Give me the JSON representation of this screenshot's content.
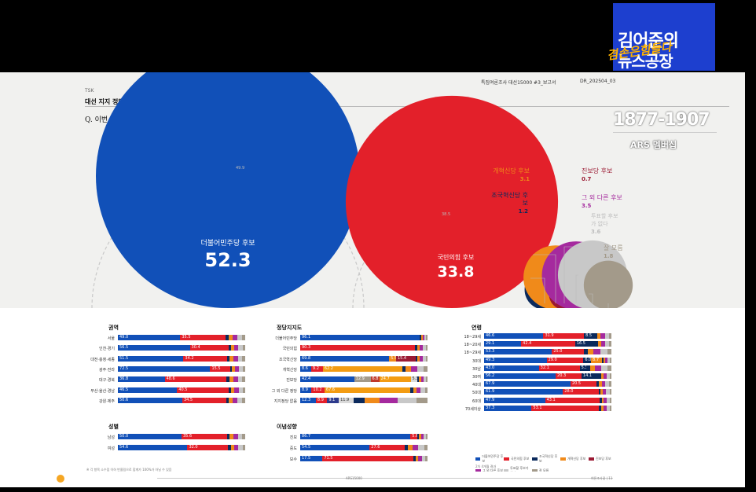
{
  "header": {
    "tag": "TSK",
    "heading": "대선 지지 정당 후보",
    "report": "특집여론조사 대선15000 #3_보고서",
    "code": "DR_202504_03",
    "question": "Q. 이번 대선에서 어느 정당 후보에 투표하시겠습니까?"
  },
  "overlay": {
    "brand_line1": "김어준의",
    "brand_slogan": "겸손은힘들다",
    "brand_line2": "뉴스공장",
    "phone": "1877-1907",
    "ars": "ARS 멤버십"
  },
  "chart_data": [
    {
      "type": "bubble",
      "title": "이번 대선에서 어느 정당 후보에 투표하시겠습니까?",
      "categories": [
        "더불어민주당 후보",
        "국민의힘 후보",
        "조국혁신당 후보",
        "개혁신당 후보",
        "진보당 후보",
        "그 외 다른 후보",
        "투표할 후보가 없다",
        "잘 모름"
      ],
      "values": [
        52.3,
        33.8,
        1.2,
        3.1,
        0.7,
        3.5,
        3.6,
        1.8
      ],
      "colors": [
        "#1150b8",
        "#e3202a",
        "#0b2a5c",
        "#f08a1a",
        "#9b1a33",
        "#a52a9e",
        "#c8c8c8",
        "#a39a8a"
      ],
      "prev_labels": [
        "49.9",
        "38.5"
      ]
    },
    {
      "type": "stacked-bar",
      "section": "권역",
      "rows": [
        {
          "label": "서울",
          "values": [
            49.0,
            35.5
          ]
        },
        {
          "label": "인천·경기",
          "values": [
            56.5,
            30.4
          ]
        },
        {
          "label": "대전·충청·세종",
          "values": [
            51.5,
            34.2
          ]
        },
        {
          "label": "광주·전라",
          "values": [
            72.5,
            15.5
          ]
        },
        {
          "label": "대구·경북",
          "values": [
            36.8,
            48.6
          ]
        },
        {
          "label": "부산·울산·경남",
          "values": [
            46.5,
            40.5
          ]
        },
        {
          "label": "강원·제주",
          "values": [
            50.6,
            34.5
          ]
        }
      ]
    },
    {
      "type": "stacked-bar",
      "section": "성별",
      "rows": [
        {
          "label": "남성",
          "values": [
            50.0,
            35.6
          ]
        },
        {
          "label": "여성",
          "values": [
            54.6,
            32.0
          ]
        }
      ]
    },
    {
      "type": "stacked-bar",
      "section": "정당지지도",
      "rows": [
        {
          "label": "더불어민주당",
          "values": [
            96.1
          ]
        },
        {
          "label": "국민의힘",
          "values": [
            0,
            90.3
          ]
        },
        {
          "label": "조국혁신당",
          "values": [
            69.8,
            0,
            0,
            5.5,
            15.4
          ]
        },
        {
          "label": "개혁신당",
          "values": [
            8.6,
            9.2,
            0,
            0,
            0,
            0,
            0,
            0,
            0,
            0,
            62.2
          ]
        },
        {
          "label": "진보당",
          "values": [
            42.4,
            0,
            0,
            0,
            0,
            0,
            0,
            12.9,
            0,
            6.8,
            24.7,
            5.3
          ]
        },
        {
          "label": "그 외 다른 정당",
          "values": [
            8.9,
            10.2,
            0,
            0,
            0,
            0,
            0,
            0,
            0,
            0,
            67.6
          ]
        },
        {
          "label": "지지정당 없음",
          "values": [
            12.3,
            8.9,
            0,
            0,
            0,
            0,
            0,
            0,
            9.1,
            0,
            0,
            11.9
          ]
        }
      ]
    },
    {
      "type": "stacked-bar",
      "section": "이념성향",
      "rows": [
        {
          "label": "진보",
          "values": [
            86.7,
            5.6
          ]
        },
        {
          "label": "중도",
          "values": [
            54.5,
            27.6
          ]
        },
        {
          "label": "보수",
          "values": [
            17.5,
            71.5
          ]
        }
      ]
    },
    {
      "type": "stacked-bar",
      "section": "연령",
      "rows": [
        {
          "label": "18~29세",
          "values": [
            46.6,
            31.9,
            8.5
          ]
        },
        {
          "label": "18~20세",
          "values": [
            29.1,
            42.4,
            16.5
          ]
        },
        {
          "label": "18~29세",
          "values": [
            53.3,
            25.0
          ]
        },
        {
          "label": "30대",
          "values": [
            49.3,
            29.0,
            6.0,
            8.7
          ]
        },
        {
          "label": "30남",
          "values": [
            43.0,
            32.1,
            5.3
          ]
        },
        {
          "label": "30여",
          "values": [
            56.2,
            20.3,
            14.1
          ]
        },
        {
          "label": "40대",
          "values": [
            67.9,
            20.5
          ]
        },
        {
          "label": "50대",
          "values": [
            61.9,
            28.0
          ]
        },
        {
          "label": "60대",
          "values": [
            47.9,
            43.1
          ]
        },
        {
          "label": "70세이상",
          "values": [
            37.3,
            53.1
          ]
        }
      ]
    }
  ],
  "legend": [
    "더불어민주당 후보",
    "국민의힘 후보",
    "조국혁신당 후보",
    "개혁신당 후보",
    "진보당 후보",
    "그 외 다른 후보",
    "투표할 후보가 없다",
    "잘 모름"
  ],
  "legend_note": "2차 4개월 결과",
  "footer": {
    "note": "※ 각 항목 소수점 이하 반올림으로 합계가 100%가 아닐 수 있음",
    "center": "ARS15000",
    "right": "여론조사꽃 | 11"
  }
}
